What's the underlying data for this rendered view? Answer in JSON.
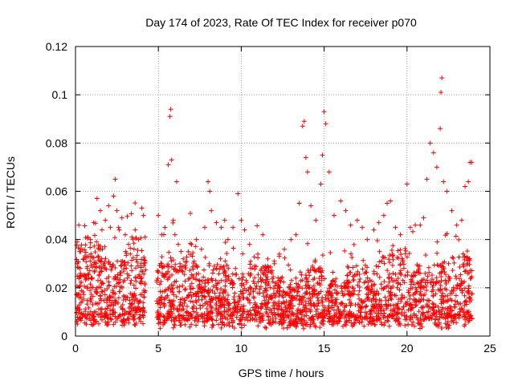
{
  "chart_data": {
    "type": "scatter",
    "title": "Day 174 of 2023, Rate Of TEC Index for receiver p070",
    "xlabel": "GPS time / hours",
    "ylabel": "ROTI / TECUs",
    "xlim": [
      0,
      25
    ],
    "ylim": [
      0,
      0.12
    ],
    "x_ticks": [
      0,
      5,
      10,
      15,
      20,
      25
    ],
    "y_ticks": [
      0,
      0.02,
      0.04,
      0.06,
      0.08,
      0.1,
      0.12
    ],
    "x_tick_labels": [
      "0",
      "5",
      "10",
      "15",
      "20",
      "25"
    ],
    "y_tick_labels": [
      "0",
      "0.02",
      "0.04",
      "0.06",
      "0.08",
      "0.1",
      "0.12"
    ],
    "grid": true,
    "marker": "+",
    "marker_color": "#ff0000",
    "series": [
      {
        "x": [
          0.1,
          0.2,
          0.25,
          0.3,
          0.5,
          0.7,
          0.9,
          1.1,
          1.3,
          1.5,
          1.6,
          1.8,
          2.0,
          2.1,
          2.3,
          2.4,
          2.5,
          2.6,
          2.8,
          3.0,
          3.2,
          3.4,
          3.6,
          3.8,
          4.0,
          4.1,
          4.2,
          5.0,
          5.2,
          5.4,
          5.6,
          5.7,
          5.75,
          5.8,
          5.9,
          6.0,
          6.1,
          6.2,
          6.3,
          6.5,
          6.8,
          7.0,
          7.3,
          7.6,
          7.8,
          8.0,
          8.1,
          8.2,
          8.5,
          8.8,
          9.0,
          9.2,
          9.5,
          9.8,
          10.0,
          10.2,
          10.5,
          11.0,
          11.3,
          11.6,
          12.0,
          12.3,
          12.6,
          13.0,
          13.3,
          13.5,
          13.7,
          13.8,
          13.9,
          14.0,
          14.2,
          14.5,
          14.8,
          14.9,
          15.0,
          15.1,
          15.3,
          15.6,
          16.0,
          16.3,
          16.6,
          17.0,
          17.3,
          17.6,
          18.0,
          18.3,
          18.6,
          18.8,
          19.0,
          19.3,
          19.6,
          20.0,
          20.2,
          20.5,
          20.8,
          21.0,
          21.2,
          21.4,
          21.6,
          21.8,
          22.0,
          22.05,
          22.1,
          22.2,
          22.4,
          22.7,
          23.0,
          23.3,
          23.5,
          23.7,
          23.8,
          23.9
        ],
        "y": [
          0.039,
          0.046,
          0.035,
          0.026,
          0.032,
          0.028,
          0.04,
          0.047,
          0.057,
          0.052,
          0.044,
          0.048,
          0.054,
          0.045,
          0.058,
          0.065,
          0.052,
          0.045,
          0.049,
          0.042,
          0.038,
          0.041,
          0.044,
          0.04,
          0.053,
          0.05,
          0.041,
          0.05,
          0.042,
          0.045,
          0.071,
          0.091,
          0.094,
          0.073,
          0.048,
          0.042,
          0.064,
          0.038,
          0.03,
          0.032,
          0.035,
          0.038,
          0.04,
          0.036,
          0.045,
          0.064,
          0.06,
          0.052,
          0.047,
          0.045,
          0.048,
          0.04,
          0.045,
          0.059,
          0.048,
          0.044,
          0.038,
          0.034,
          0.042,
          0.032,
          0.03,
          0.034,
          0.036,
          0.04,
          0.042,
          0.055,
          0.087,
          0.089,
          0.074,
          0.068,
          0.054,
          0.048,
          0.063,
          0.075,
          0.093,
          0.088,
          0.068,
          0.05,
          0.056,
          0.052,
          0.046,
          0.048,
          0.045,
          0.04,
          0.044,
          0.047,
          0.05,
          0.055,
          0.056,
          0.045,
          0.042,
          0.063,
          0.045,
          0.046,
          0.046,
          0.049,
          0.065,
          0.08,
          0.076,
          0.07,
          0.086,
          0.101,
          0.107,
          0.064,
          0.06,
          0.052,
          0.046,
          0.048,
          0.062,
          0.064,
          0.072,
          0.072
        ]
      }
    ]
  }
}
